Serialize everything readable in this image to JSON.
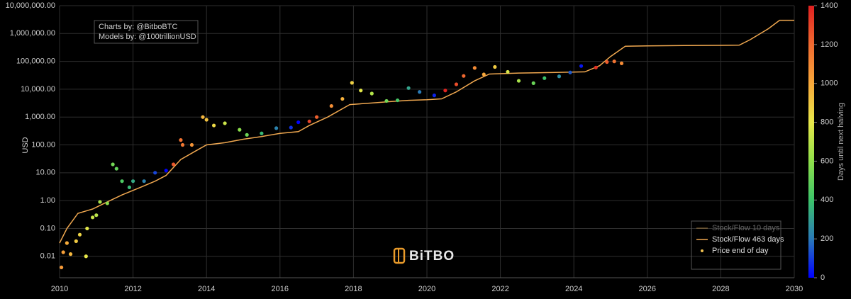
{
  "chart_data": {
    "type": "scatter",
    "credits": [
      "Charts by: @BitboBTC",
      "Models by: @100trillionUSD"
    ],
    "watermark": "BiTBO",
    "ylabel": "USD",
    "log_y": true,
    "grid": true,
    "legend": "bottom-right",
    "xlim": [
      2010,
      2030
    ],
    "xticks": [
      2010,
      2012,
      2014,
      2016,
      2018,
      2020,
      2022,
      2024,
      2026,
      2028,
      2030
    ],
    "ylim": [
      0.0017,
      10000000
    ],
    "yticks": [
      {
        "value": 10000000,
        "label": "10,000,000.00"
      },
      {
        "value": 1000000,
        "label": "1,000,000.00"
      },
      {
        "value": 100000,
        "label": "100,000.00"
      },
      {
        "value": 10000,
        "label": "10,000.00"
      },
      {
        "value": 1000,
        "label": "1,000.00"
      },
      {
        "value": 100,
        "label": "100.00"
      },
      {
        "value": 10,
        "label": "10.00"
      },
      {
        "value": 1,
        "label": "1.00"
      },
      {
        "value": 0.1,
        "label": "0.10"
      },
      {
        "value": 0.01,
        "label": "0.01"
      }
    ],
    "colorbar": {
      "label": "Days until next halving",
      "lim": [
        0,
        1400
      ],
      "ticks": [
        0,
        200,
        400,
        600,
        800,
        1000,
        1200,
        1400
      ],
      "colors": [
        "#0000ff",
        "#2a7ab8",
        "#3cc46a",
        "#8fe04a",
        "#e8e84a",
        "#f8a83a",
        "#f06a30",
        "#e02020"
      ]
    },
    "series": [
      {
        "name": "Stock/Flow 10 days",
        "type": "line",
        "color": "#c8964a",
        "visible": false
      },
      {
        "name": "Stock/Flow 463 days",
        "type": "line",
        "color": "#f0a850",
        "x": [
          2010.0,
          2010.2,
          2010.5,
          2010.9,
          2011.3,
          2011.7,
          2012.2,
          2012.6,
          2012.9,
          2013.3,
          2013.7,
          2014.0,
          2014.5,
          2015.0,
          2015.5,
          2016.0,
          2016.5,
          2016.8,
          2017.3,
          2017.9,
          2018.5,
          2019.0,
          2019.5,
          2020.0,
          2020.4,
          2020.8,
          2021.3,
          2021.7,
          2022.5,
          2023.5,
          2024.3,
          2024.7,
          2025.0,
          2025.4,
          2026.0,
          2027.0,
          2028.5,
          2028.8,
          2029.3,
          2029.6,
          2030.0
        ],
        "values": [
          0.03,
          0.1,
          0.35,
          0.5,
          0.9,
          1.6,
          3,
          5,
          8,
          30,
          60,
          100,
          120,
          160,
          200,
          260,
          300,
          500,
          1000,
          2800,
          3200,
          3600,
          4000,
          4200,
          4500,
          8000,
          20000,
          35000,
          38000,
          40000,
          42000,
          70000,
          150000,
          350000,
          360000,
          370000,
          380000,
          600000,
          1500000,
          3000000,
          3000000
        ]
      },
      {
        "name": "Price end of day",
        "type": "scatter",
        "color": "#f0c050",
        "x": [
          2010.05,
          2010.1,
          2010.2,
          2010.3,
          2010.45,
          2010.55,
          2010.72,
          2010.75,
          2010.9,
          2011.0,
          2011.1,
          2011.3,
          2011.45,
          2011.55,
          2011.7,
          2011.9,
          2012.0,
          2012.3,
          2012.6,
          2012.9,
          2013.1,
          2013.3,
          2013.35,
          2013.6,
          2013.9,
          2014.0,
          2014.2,
          2014.5,
          2014.9,
          2015.1,
          2015.5,
          2015.9,
          2016.3,
          2016.5,
          2016.8,
          2017.0,
          2017.4,
          2017.7,
          2017.96,
          2018.2,
          2018.5,
          2018.9,
          2019.2,
          2019.5,
          2019.8,
          2020.2,
          2020.5,
          2020.8,
          2021.0,
          2021.3,
          2021.55,
          2021.85,
          2022.2,
          2022.5,
          2022.9,
          2023.2,
          2023.6,
          2023.9,
          2024.2,
          2024.6,
          2024.9,
          2025.1,
          2025.3
        ],
        "values": [
          0.004,
          0.014,
          0.03,
          0.012,
          0.035,
          0.06,
          0.01,
          0.1,
          0.25,
          0.3,
          0.9,
          0.8,
          20,
          14,
          5,
          3,
          5,
          5,
          10,
          12,
          20,
          150,
          100,
          100,
          1000,
          800,
          500,
          600,
          350,
          230,
          260,
          400,
          420,
          650,
          700,
          1000,
          2500,
          4500,
          17000,
          9000,
          7000,
          3800,
          4000,
          11000,
          8000,
          6000,
          9000,
          15000,
          30000,
          58000,
          34000,
          63000,
          42000,
          20000,
          16500,
          25000,
          29000,
          40000,
          68000,
          60000,
          95000,
          100000,
          85000
        ],
        "color_values": [
          1044,
          1026,
          989,
          953,
          898,
          861,
          799,
          788,
          734,
          697,
          661,
          588,
          533,
          496,
          442,
          369,
          332,
          223,
          113,
          4,
          1248,
          1175,
          1157,
          1066,
          956,
          920,
          847,
          737,
          591,
          518,
          372,
          226,
          80,
          7,
          1299,
          1226,
          1080,
          971,
          876,
          788,
          679,
          533,
          423,
          314,
          204,
          58,
          1387,
          1278,
          1205,
          1095,
          1004,
          894,
          767,
          657,
          511,
          402,
          256,
          146,
          37,
          1351,
          1241,
          1168,
          1095
        ]
      }
    ]
  }
}
